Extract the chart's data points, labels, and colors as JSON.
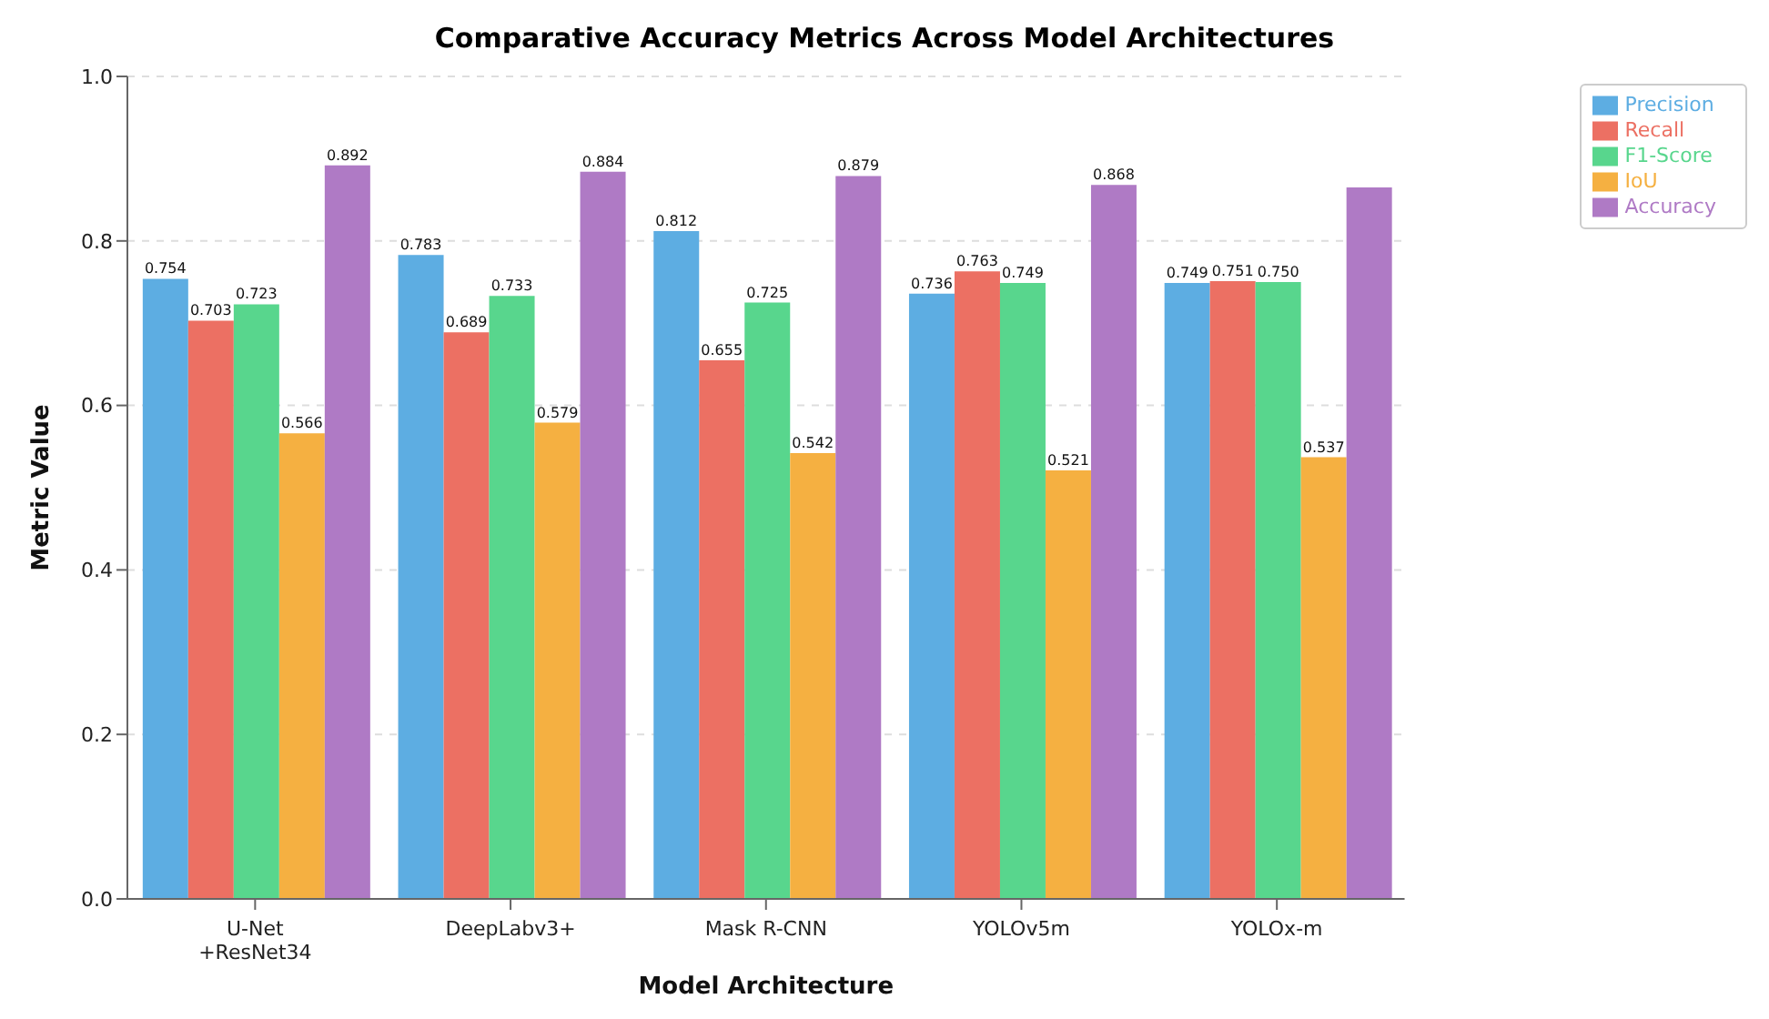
{
  "chart_data": {
    "type": "bar",
    "title": "Comparative Accuracy Metrics Across Model Architectures",
    "xlabel": "Model Architecture",
    "ylabel": "Metric Value",
    "categories": [
      "U-Net\n+ResNet34",
      "DeepLabv3+",
      "Mask R-CNN",
      "YOLOv5m",
      "YOLOx-m"
    ],
    "series": [
      {
        "name": "Precision",
        "color": "#5dade2",
        "values": [
          0.754,
          0.783,
          0.812,
          0.736,
          0.749
        ],
        "value_labels": [
          "0.754",
          "0.783",
          "0.812",
          "0.736",
          "0.749"
        ]
      },
      {
        "name": "Recall",
        "color": "#ec7063",
        "values": [
          0.703,
          0.689,
          0.655,
          0.763,
          0.751
        ],
        "value_labels": [
          "0.703",
          "0.689",
          "0.655",
          "0.763",
          "0.751"
        ]
      },
      {
        "name": "F1-Score",
        "color": "#58d68d",
        "values": [
          0.723,
          0.733,
          0.725,
          0.749,
          0.75
        ],
        "value_labels": [
          "0.723",
          "0.733",
          "0.725",
          "0.749",
          "0.750"
        ]
      },
      {
        "name": "IoU",
        "color": "#f5b041",
        "values": [
          0.566,
          0.579,
          0.542,
          0.521,
          0.537
        ],
        "value_labels": [
          "0.566",
          "0.579",
          "0.542",
          "0.521",
          "0.537"
        ]
      },
      {
        "name": "Accuracy",
        "color": "#af7ac5",
        "values": [
          0.892,
          0.884,
          0.879,
          0.868,
          0.865
        ],
        "value_labels": [
          "0.892",
          "0.884",
          "0.879",
          "0.868",
          null
        ]
      }
    ],
    "ylim": [
      0,
      1
    ],
    "yticks": [
      {
        "value": 0,
        "label": "0.0"
      },
      {
        "value": 0.2,
        "label": "0.2"
      },
      {
        "value": 0.4,
        "label": "0.4"
      },
      {
        "value": 0.6,
        "label": "0.6"
      },
      {
        "value": 0.8,
        "label": "0.8"
      },
      {
        "value": 1,
        "label": "1.0"
      }
    ],
    "grid": "y",
    "legend": "top right"
  }
}
